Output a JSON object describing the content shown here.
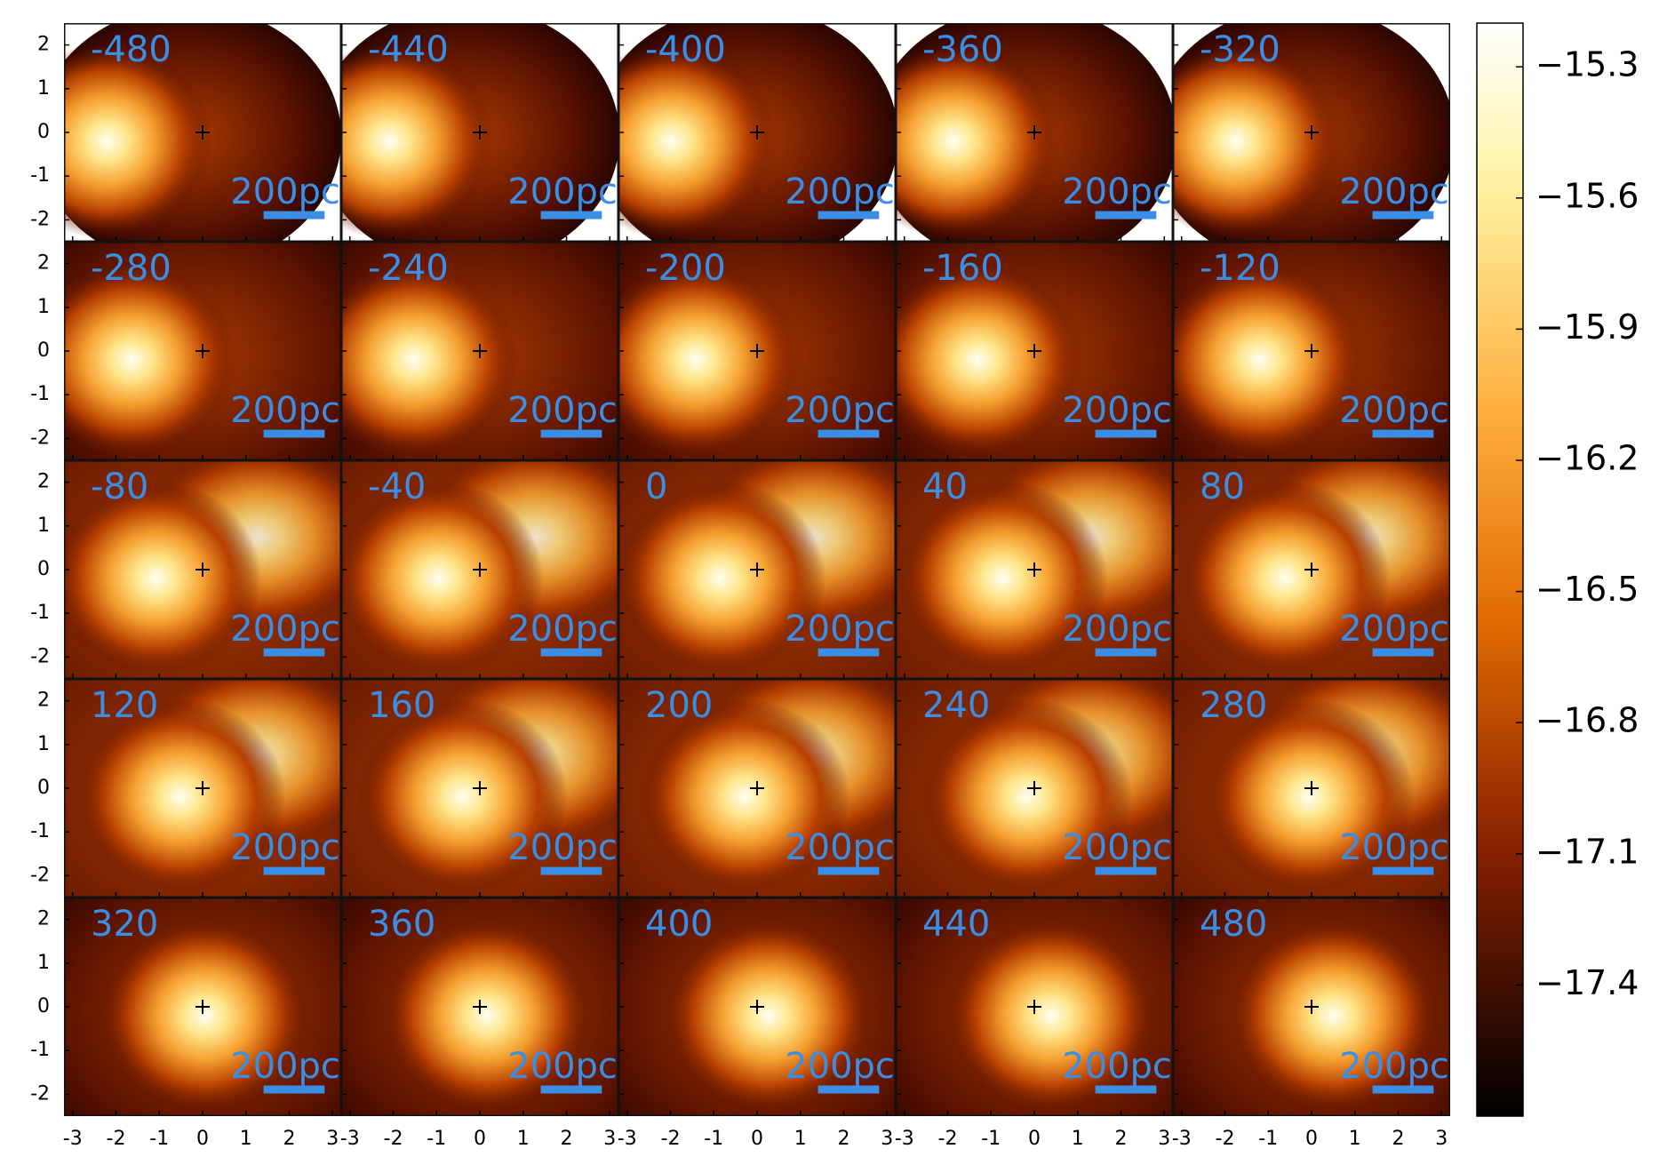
{
  "chart_data": {
    "type": "channel-map",
    "channels": [
      -480,
      -440,
      -400,
      -360,
      -320,
      -280,
      -240,
      -200,
      -160,
      -120,
      -80,
      -40,
      0,
      40,
      80,
      120,
      160,
      200,
      240,
      280,
      320,
      360,
      400,
      440,
      480
    ],
    "scale_bar_label": "200pc",
    "xlim": [
      -3.2,
      3.2
    ],
    "xticks": [
      -3,
      -2,
      -1,
      0,
      1,
      2,
      3
    ],
    "ylim": [
      -2.5,
      2.5
    ],
    "yticks": [
      2,
      1,
      0,
      -1,
      -2
    ],
    "clim": [
      -17.7,
      -15.2
    ],
    "cticks": [
      {
        "value": -15.3,
        "label": "−15.3"
      },
      {
        "value": -15.6,
        "label": "−15.6"
      },
      {
        "value": -15.9,
        "label": "−15.9"
      },
      {
        "value": -16.2,
        "label": "−16.2"
      },
      {
        "value": -16.5,
        "label": "−16.5"
      },
      {
        "value": -16.8,
        "label": "−16.8"
      },
      {
        "value": -17.1,
        "label": "−17.1"
      },
      {
        "value": -17.4,
        "label": "−17.4"
      }
    ]
  }
}
